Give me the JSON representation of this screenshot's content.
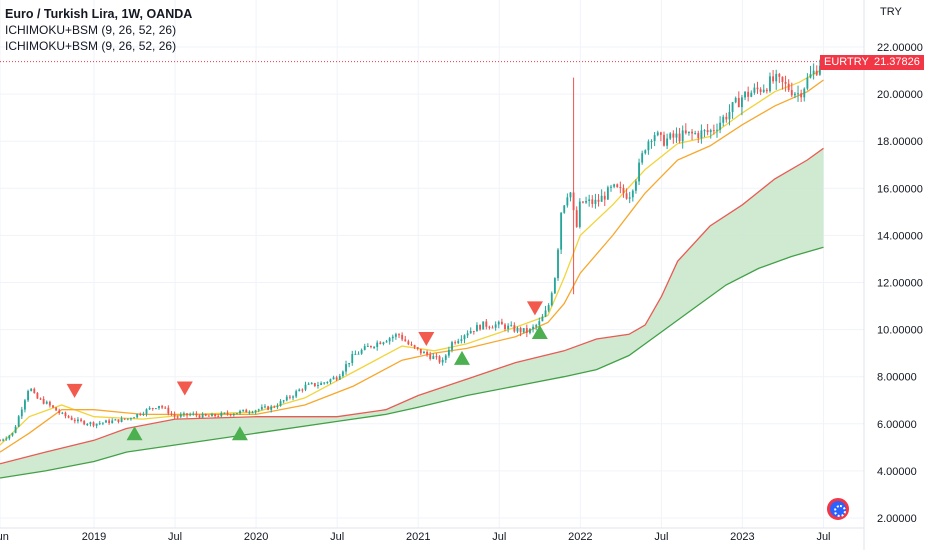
{
  "legend": {
    "title": "Euro / Turkish Lira, 1W, OANDA",
    "line1": "ICHIMOKU+BSM (9, 26, 52, 26)",
    "line2": "ICHIMOKU+BSM (9, 26, 52, 26)"
  },
  "price_tag": {
    "symbol": "EURTRY",
    "price": "21.37826"
  },
  "colors": {
    "up": "#26a69a",
    "down": "#ef5350",
    "tenkan": "#f2d43a",
    "kijun": "#f7a72d",
    "span_a": "#e85b54",
    "span_b": "#43a047",
    "cloud": "#c8e6c9",
    "sell_marker": "#f25a4e",
    "buy_marker": "#4caf50",
    "price_line": "#f23645"
  },
  "chart_data": {
    "type": "candlestick",
    "currency": "TRY",
    "ylim": [
      2,
      22
    ],
    "yticks": [
      "22.00000",
      "20.00000",
      "18.00000",
      "16.00000",
      "14.00000",
      "12.00000",
      "10.00000",
      "8.00000",
      "6.00000",
      "4.00000",
      "2.00000"
    ],
    "xlabels": [
      {
        "label": "Jun",
        "t": 2018.42
      },
      {
        "label": "2019",
        "t": 2019.0
      },
      {
        "label": "Jul",
        "t": 2019.5
      },
      {
        "label": "2020",
        "t": 2020.0
      },
      {
        "label": "Jul",
        "t": 2020.5
      },
      {
        "label": "2021",
        "t": 2021.0
      },
      {
        "label": "Jul",
        "t": 2021.5
      },
      {
        "label": "2022",
        "t": 2022.0
      },
      {
        "label": "Jul",
        "t": 2022.5
      },
      {
        "label": "2023",
        "t": 2023.0
      },
      {
        "label": "Jul",
        "t": 2023.5
      }
    ],
    "xlim": [
      2018.42,
      2023.75
    ],
    "last_price": 21.37826,
    "close_path": [
      [
        2018.42,
        5.3
      ],
      [
        2018.5,
        5.6
      ],
      [
        2018.55,
        6.6
      ],
      [
        2018.6,
        7.6
      ],
      [
        2018.64,
        7.1
      ],
      [
        2018.7,
        6.9
      ],
      [
        2018.8,
        6.4
      ],
      [
        2018.9,
        6.1
      ],
      [
        2019.0,
        6.0
      ],
      [
        2019.1,
        6.1
      ],
      [
        2019.2,
        6.2
      ],
      [
        2019.3,
        6.5
      ],
      [
        2019.4,
        6.8
      ],
      [
        2019.5,
        6.3
      ],
      [
        2019.6,
        6.4
      ],
      [
        2019.7,
        6.3
      ],
      [
        2019.8,
        6.4
      ],
      [
        2019.9,
        6.5
      ],
      [
        2020.0,
        6.6
      ],
      [
        2020.1,
        6.7
      ],
      [
        2020.2,
        7.1
      ],
      [
        2020.3,
        7.6
      ],
      [
        2020.4,
        7.7
      ],
      [
        2020.5,
        8.0
      ],
      [
        2020.6,
        8.9
      ],
      [
        2020.7,
        9.3
      ],
      [
        2020.8,
        9.6
      ],
      [
        2020.88,
        9.8
      ],
      [
        2020.95,
        9.3
      ],
      [
        2021.0,
        9.1
      ],
      [
        2021.1,
        8.8
      ],
      [
        2021.15,
        8.6
      ],
      [
        2021.2,
        9.4
      ],
      [
        2021.3,
        9.9
      ],
      [
        2021.4,
        10.2
      ],
      [
        2021.5,
        10.2
      ],
      [
        2021.6,
        10.0
      ],
      [
        2021.68,
        9.9
      ],
      [
        2021.75,
        10.3
      ],
      [
        2021.8,
        10.9
      ],
      [
        2021.85,
        12.5
      ],
      [
        2021.88,
        15.0
      ],
      [
        2021.93,
        16.0
      ],
      [
        2021.95,
        15.6
      ],
      [
        2021.97,
        14.0
      ],
      [
        2022.0,
        15.4
      ],
      [
        2022.1,
        15.4
      ],
      [
        2022.2,
        16.0
      ],
      [
        2022.3,
        15.7
      ],
      [
        2022.35,
        16.6
      ],
      [
        2022.4,
        17.8
      ],
      [
        2022.45,
        18.4
      ],
      [
        2022.5,
        18.0
      ],
      [
        2022.6,
        18.2
      ],
      [
        2022.7,
        18.3
      ],
      [
        2022.8,
        18.4
      ],
      [
        2022.9,
        19.1
      ],
      [
        2023.0,
        19.9
      ],
      [
        2023.1,
        20.2
      ],
      [
        2023.2,
        20.6
      ],
      [
        2023.3,
        20.2
      ],
      [
        2023.35,
        20.0
      ],
      [
        2023.4,
        20.6
      ],
      [
        2023.45,
        21.0
      ],
      [
        2023.48,
        21.38
      ]
    ],
    "series": [
      {
        "key": "tenkan",
        "points": [
          [
            2018.42,
            5.1
          ],
          [
            2018.6,
            6.3
          ],
          [
            2018.8,
            6.8
          ],
          [
            2019.0,
            6.3
          ],
          [
            2019.3,
            6.2
          ],
          [
            2019.6,
            6.4
          ],
          [
            2020.0,
            6.5
          ],
          [
            2020.3,
            7.1
          ],
          [
            2020.6,
            8.2
          ],
          [
            2020.9,
            9.3
          ],
          [
            2021.1,
            9.1
          ],
          [
            2021.3,
            9.4
          ],
          [
            2021.6,
            10.1
          ],
          [
            2021.8,
            10.6
          ],
          [
            2021.9,
            12.2
          ],
          [
            2022.0,
            14.0
          ],
          [
            2022.2,
            15.3
          ],
          [
            2022.4,
            16.8
          ],
          [
            2022.6,
            17.9
          ],
          [
            2022.8,
            18.2
          ],
          [
            2023.0,
            19.2
          ],
          [
            2023.2,
            20.1
          ],
          [
            2023.35,
            20.5
          ],
          [
            2023.48,
            21.0
          ]
        ]
      },
      {
        "key": "kijun",
        "points": [
          [
            2018.42,
            4.8
          ],
          [
            2018.6,
            5.6
          ],
          [
            2018.8,
            6.6
          ],
          [
            2019.0,
            6.6
          ],
          [
            2019.3,
            6.4
          ],
          [
            2019.6,
            6.4
          ],
          [
            2020.0,
            6.4
          ],
          [
            2020.3,
            6.8
          ],
          [
            2020.6,
            7.6
          ],
          [
            2020.9,
            8.7
          ],
          [
            2021.1,
            9.0
          ],
          [
            2021.3,
            9.2
          ],
          [
            2021.6,
            9.7
          ],
          [
            2021.8,
            10.3
          ],
          [
            2021.9,
            11.1
          ],
          [
            2022.0,
            12.4
          ],
          [
            2022.2,
            14.0
          ],
          [
            2022.4,
            15.8
          ],
          [
            2022.6,
            17.2
          ],
          [
            2022.8,
            17.8
          ],
          [
            2023.0,
            18.7
          ],
          [
            2023.2,
            19.5
          ],
          [
            2023.4,
            20.1
          ],
          [
            2023.5,
            20.6
          ]
        ]
      },
      {
        "key": "span_a",
        "points": [
          [
            2018.42,
            4.3
          ],
          [
            2018.7,
            4.8
          ],
          [
            2019.0,
            5.3
          ],
          [
            2019.2,
            5.8
          ],
          [
            2019.5,
            6.2
          ],
          [
            2020.0,
            6.3
          ],
          [
            2020.5,
            6.3
          ],
          [
            2020.8,
            6.6
          ],
          [
            2021.0,
            7.2
          ],
          [
            2021.3,
            7.9
          ],
          [
            2021.6,
            8.6
          ],
          [
            2021.9,
            9.1
          ],
          [
            2022.1,
            9.6
          ],
          [
            2022.3,
            9.8
          ],
          [
            2022.4,
            10.2
          ],
          [
            2022.5,
            11.4
          ],
          [
            2022.6,
            12.9
          ],
          [
            2022.8,
            14.4
          ],
          [
            2023.0,
            15.3
          ],
          [
            2023.2,
            16.4
          ],
          [
            2023.4,
            17.2
          ],
          [
            2023.5,
            17.7
          ]
        ]
      },
      {
        "key": "span_b",
        "points": [
          [
            2018.42,
            3.7
          ],
          [
            2018.7,
            4.0
          ],
          [
            2019.0,
            4.4
          ],
          [
            2019.2,
            4.8
          ],
          [
            2019.5,
            5.1
          ],
          [
            2020.0,
            5.6
          ],
          [
            2020.5,
            6.1
          ],
          [
            2020.8,
            6.4
          ],
          [
            2021.0,
            6.7
          ],
          [
            2021.3,
            7.2
          ],
          [
            2021.6,
            7.6
          ],
          [
            2021.9,
            8.0
          ],
          [
            2022.1,
            8.3
          ],
          [
            2022.3,
            8.9
          ],
          [
            2022.5,
            9.9
          ],
          [
            2022.7,
            10.9
          ],
          [
            2022.9,
            11.9
          ],
          [
            2023.1,
            12.6
          ],
          [
            2023.3,
            13.1
          ],
          [
            2023.5,
            13.5
          ]
        ]
      }
    ],
    "markers": [
      {
        "type": "sell",
        "t": 2018.88,
        "y": 7.4
      },
      {
        "type": "buy",
        "t": 2019.25,
        "y": 5.6
      },
      {
        "type": "sell",
        "t": 2019.56,
        "y": 7.5
      },
      {
        "type": "buy",
        "t": 2019.9,
        "y": 5.6
      },
      {
        "type": "sell",
        "t": 2021.05,
        "y": 9.6
      },
      {
        "type": "buy",
        "t": 2021.27,
        "y": 8.8
      },
      {
        "type": "sell",
        "t": 2021.72,
        "y": 10.9
      },
      {
        "type": "buy",
        "t": 2021.75,
        "y": 9.9
      }
    ]
  }
}
